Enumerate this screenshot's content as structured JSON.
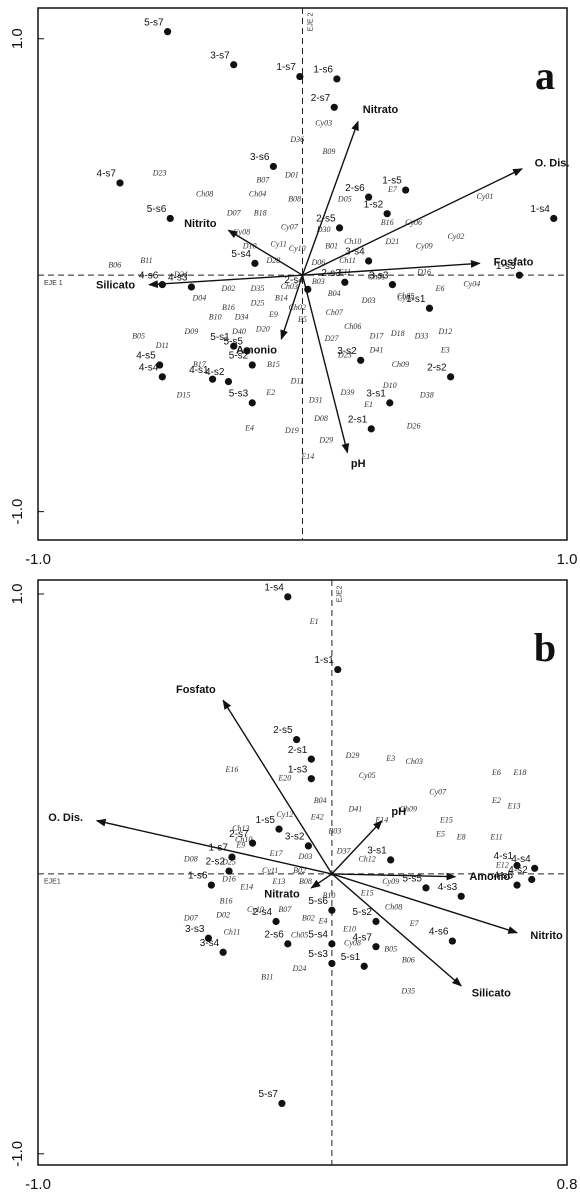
{
  "chart_data": [
    {
      "type": "biplot",
      "panel_label": "a",
      "x_axis_label": "EJE 1",
      "y_axis_label": "EJE 2",
      "xlim": [
        -1,
        1
      ],
      "ylim": [
        -1.12,
        1.13
      ],
      "xticks": [
        {
          "value": -1,
          "label": "-1.0"
        },
        {
          "value": 1,
          "label": "1.0"
        }
      ],
      "yticks": [
        {
          "value": -1,
          "label": "-1.0"
        },
        {
          "value": 1,
          "label": "1.0"
        }
      ],
      "samples": {
        "labels": [
          "5-s7",
          "3-s7",
          "1-s7",
          "1-s6",
          "2-s7",
          "4-s7",
          "3-s6",
          "2-s6",
          "1-s5",
          "1-s2",
          "2-s5",
          "5-s6",
          "1-s4",
          "3-s4",
          "5-s4",
          "1-s3",
          "2-s3",
          "4-s6",
          "4-s3",
          "3-s3",
          "2-s4",
          "1-s1",
          "5-s1",
          "5-s5",
          "5-s2",
          "3-s2",
          "4-s5",
          "4-s4",
          "4-s1",
          "4-s2",
          "2-s2",
          "3-s1",
          "5-s3",
          "2-s1"
        ],
        "x": [
          -0.51,
          -0.26,
          -0.01,
          0.13,
          0.12,
          -0.69,
          -0.11,
          0.25,
          0.39,
          0.32,
          0.14,
          -0.5,
          0.95,
          0.25,
          -0.18,
          0.82,
          0.16,
          -0.53,
          -0.42,
          0.34,
          0.02,
          0.48,
          -0.26,
          -0.21,
          -0.19,
          0.22,
          -0.54,
          -0.53,
          -0.34,
          -0.28,
          0.56,
          0.33,
          -0.19,
          0.26
        ],
        "y": [
          1.03,
          0.89,
          0.84,
          0.83,
          0.71,
          0.39,
          0.46,
          0.33,
          0.36,
          0.26,
          0.2,
          0.24,
          0.24,
          0.06,
          0.05,
          0.0,
          -0.03,
          -0.04,
          -0.05,
          -0.04,
          -0.06,
          -0.14,
          -0.3,
          -0.32,
          -0.38,
          -0.36,
          -0.38,
          -0.43,
          -0.44,
          -0.45,
          -0.43,
          -0.54,
          -0.54,
          -0.65
        ]
      },
      "species": {
        "labels": [
          "D23",
          "Ch08",
          "B07",
          "D01",
          "B08",
          "B09",
          "Cy03",
          "D36",
          "D05",
          "E7",
          "Cy01",
          "Cy06",
          "B16",
          "Ch04",
          "D07",
          "B18",
          "Cy08",
          "Cy07",
          "D30",
          "Ch10",
          "D21",
          "Cy09",
          "Cy02",
          "B11",
          "B06",
          "D10",
          "Cy11",
          "Cy10",
          "B01",
          "D28",
          "D06",
          "Ch11",
          "D24",
          "E11",
          "Ch01",
          "D16",
          "Cy04",
          "D02",
          "D35",
          "Ch03",
          "B03",
          "B04",
          "Ch05",
          "E6",
          "D04",
          "D25",
          "B14",
          "D03",
          "Cy05",
          "B16",
          "B10",
          "D34",
          "E9",
          "Ch02",
          "D09",
          "D40",
          "D20",
          "E5",
          "Ch07",
          "Ch06",
          "D12",
          "D33",
          "B05",
          "D11",
          "D27",
          "D17",
          "D18",
          "E3",
          "D41",
          "D23",
          "Ch09",
          "B17",
          "B15",
          "D15",
          "E2",
          "D11",
          "D39",
          "D10",
          "D38",
          "D31",
          "E1",
          "D26",
          "E4",
          "D08",
          "D19",
          "D29",
          "E14"
        ],
        "x": [
          -0.54,
          -0.37,
          -0.15,
          -0.04,
          -0.03,
          0.1,
          0.08,
          -0.02,
          0.16,
          0.34,
          0.69,
          0.42,
          0.32,
          -0.17,
          -0.26,
          -0.16,
          -0.23,
          -0.05,
          0.08,
          0.19,
          0.34,
          0.46,
          0.58,
          -0.59,
          -0.71,
          -0.2,
          -0.09,
          -0.02,
          0.11,
          -0.11,
          0.06,
          0.17,
          -0.46,
          0.16,
          0.28,
          0.46,
          0.64,
          -0.28,
          -0.17,
          -0.05,
          0.06,
          0.12,
          0.39,
          0.52,
          -0.39,
          -0.17,
          -0.08,
          0.25,
          0.39,
          -0.28,
          -0.33,
          -0.23,
          -0.11,
          -0.02,
          -0.42,
          -0.24,
          -0.15,
          0.0,
          0.12,
          0.19,
          0.54,
          0.45,
          -0.62,
          -0.53,
          0.11,
          0.28,
          0.36,
          0.54,
          0.28,
          0.16,
          0.37,
          -0.39,
          -0.11,
          -0.45,
          -0.12,
          -0.02,
          0.17,
          0.33,
          0.47,
          0.05,
          0.25,
          0.42,
          -0.2,
          0.07,
          -0.04,
          0.09,
          0.02
        ],
        "y": [
          0.43,
          0.34,
          0.4,
          0.42,
          0.32,
          0.52,
          0.64,
          0.57,
          0.32,
          0.36,
          0.33,
          0.22,
          0.22,
          0.34,
          0.26,
          0.26,
          0.18,
          0.2,
          0.19,
          0.14,
          0.14,
          0.12,
          0.16,
          0.06,
          0.04,
          0.12,
          0.13,
          0.11,
          0.12,
          0.06,
          0.05,
          0.06,
          0.0,
          0.01,
          -0.01,
          0.01,
          -0.04,
          -0.06,
          -0.06,
          -0.05,
          -0.03,
          -0.08,
          -0.09,
          -0.06,
          -0.1,
          -0.12,
          -0.1,
          -0.11,
          -0.1,
          -0.14,
          -0.18,
          -0.18,
          -0.17,
          -0.14,
          -0.24,
          -0.24,
          -0.23,
          -0.19,
          -0.16,
          -0.22,
          -0.24,
          -0.26,
          -0.26,
          -0.3,
          -0.27,
          -0.26,
          -0.25,
          -0.32,
          -0.32,
          -0.34,
          -0.38,
          -0.38,
          -0.38,
          -0.51,
          -0.5,
          -0.45,
          -0.5,
          -0.47,
          -0.51,
          -0.53,
          -0.55,
          -0.64,
          -0.65,
          -0.61,
          -0.66,
          -0.7,
          -0.77
        ]
      },
      "vectors": {
        "labels": [
          "Nitrato",
          "O. Dis.",
          "Fosfato",
          "Nitrito",
          "Silicato",
          "Amonio",
          "pH"
        ],
        "x": [
          0.21,
          0.83,
          0.67,
          -0.28,
          -0.58,
          -0.08,
          0.17
        ],
        "y": [
          0.65,
          0.45,
          0.05,
          0.19,
          -0.04,
          -0.27,
          -0.75
        ]
      }
    },
    {
      "type": "biplot",
      "panel_label": "b",
      "x_axis_label": "EJE1",
      "y_axis_label": "EJE2",
      "xlim": [
        -1,
        0.8
      ],
      "ylim": [
        -1.04,
        1.05
      ],
      "xticks": [
        {
          "value": -1,
          "label": "-1.0"
        },
        0.8
      ],
      "yticks": [
        {
          "value": -1,
          "label": "-1.0"
        },
        {
          "value": 1,
          "label": "1.0"
        }
      ],
      "samples": {
        "labels": [
          "1-s4",
          "1-s1",
          "2-s5",
          "2-s1",
          "1-s3",
          "1-s5",
          "2-s7",
          "3-s2",
          "1-s7",
          "2-s2",
          "3-s1",
          "4-s1",
          "4-s4",
          "4-s5",
          "4-s2",
          "5-s5",
          "4-s3",
          "1-s6",
          "5-s6",
          "5-s2",
          "2-s4",
          "3-s3",
          "4-s6",
          "2-s6",
          "5-s4",
          "3-s4",
          "4-s7",
          "5-s3",
          "5-s1",
          "5-s7"
        ],
        "x": [
          -0.15,
          0.02,
          -0.12,
          -0.07,
          -0.07,
          -0.18,
          -0.27,
          -0.08,
          -0.34,
          -0.35,
          0.2,
          0.63,
          0.69,
          0.63,
          0.68,
          0.32,
          0.44,
          -0.41,
          0.0,
          0.15,
          -0.19,
          -0.42,
          0.41,
          -0.15,
          0.0,
          -0.37,
          0.15,
          0.0,
          0.11,
          -0.17
        ],
        "y": [
          0.99,
          0.73,
          0.48,
          0.41,
          0.34,
          0.16,
          0.11,
          0.1,
          0.06,
          0.01,
          0.05,
          0.03,
          0.02,
          -0.04,
          -0.02,
          -0.05,
          -0.08,
          -0.04,
          -0.13,
          -0.17,
          -0.17,
          -0.23,
          -0.24,
          -0.25,
          -0.25,
          -0.28,
          -0.26,
          -0.32,
          -0.33,
          -0.82
        ]
      },
      "species": {
        "labels": [
          "E1",
          "D29",
          "E3",
          "Ch03",
          "E16",
          "Cy05",
          "E6",
          "E18",
          "E20",
          "B04",
          "Cy07",
          "E2",
          "E13",
          "Ch09",
          "Cy12",
          "E42",
          "D41",
          "Ch13",
          "B03",
          "E14",
          "E15",
          "Ch10",
          "D37",
          "E8",
          "E11",
          "E5",
          "E9",
          "D03",
          "Ch12",
          "E17",
          "E12",
          "D08",
          "D25",
          "Cy11",
          "B02",
          "D16",
          "E13",
          "E14",
          "B08",
          "B10",
          "E15",
          "Cy09",
          "B16",
          "Ch08",
          "E7",
          "D07",
          "D02",
          "Cy10",
          "B07",
          "E4",
          "B02",
          "E10",
          "Ch05",
          "Cy08",
          "Ch11",
          "B05",
          "B06",
          "D24",
          "B11",
          "D35"
        ],
        "x": [
          -0.06,
          0.07,
          0.2,
          0.28,
          -0.34,
          0.12,
          0.56,
          0.64,
          -0.16,
          -0.04,
          0.36,
          0.56,
          0.62,
          0.26,
          -0.16,
          -0.05,
          0.08,
          -0.31,
          0.01,
          0.17,
          0.39,
          -0.3,
          0.04,
          0.44,
          0.56,
          0.37,
          -0.31,
          -0.09,
          0.12,
          -0.19,
          0.58,
          -0.48,
          -0.35,
          -0.21,
          -0.11,
          -0.35,
          -0.18,
          -0.29,
          -0.09,
          -0.01,
          0.12,
          0.2,
          -0.36,
          0.21,
          0.28,
          -0.48,
          -0.37,
          -0.26,
          -0.16,
          -0.03,
          -0.08,
          0.06,
          -0.11,
          0.07,
          -0.34,
          0.2,
          0.26,
          -0.11,
          -0.22,
          0.26
        ],
        "y": [
          0.9,
          0.42,
          0.41,
          0.4,
          0.37,
          0.35,
          0.36,
          0.36,
          0.34,
          0.26,
          0.29,
          0.26,
          0.24,
          0.23,
          0.21,
          0.2,
          0.23,
          0.16,
          0.15,
          0.19,
          0.19,
          0.12,
          0.08,
          0.13,
          0.13,
          0.14,
          0.1,
          0.06,
          0.05,
          0.07,
          0.03,
          0.05,
          0.04,
          0.01,
          0.01,
          -0.02,
          -0.03,
          -0.05,
          -0.03,
          -0.08,
          -0.07,
          -0.03,
          -0.1,
          -0.12,
          -0.18,
          -0.16,
          -0.15,
          -0.13,
          -0.13,
          -0.17,
          -0.16,
          -0.2,
          -0.22,
          -0.25,
          -0.21,
          -0.27,
          -0.31,
          -0.34,
          -0.37,
          -0.42
        ]
      },
      "vectors": {
        "labels": [
          "Fosfato",
          "O. Dis.",
          "pH",
          "Amonio",
          "Nitrito",
          "Silicato",
          "Nitrato"
        ],
        "x": [
          -0.37,
          -0.8,
          0.17,
          0.42,
          0.63,
          0.44,
          -0.07
        ],
        "y": [
          0.62,
          0.19,
          0.19,
          -0.01,
          -0.21,
          -0.4,
          -0.05
        ]
      }
    }
  ]
}
